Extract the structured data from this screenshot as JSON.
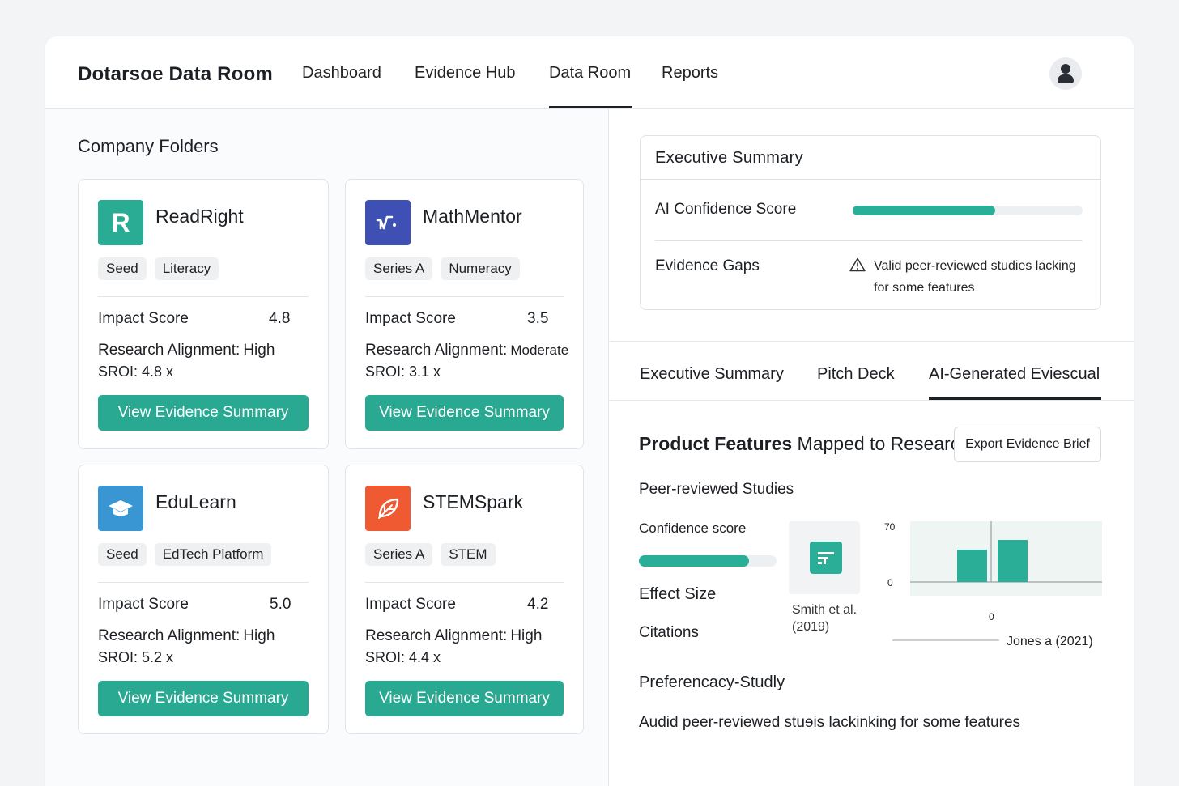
{
  "header": {
    "brand": "Dotarsoe Data Room",
    "nav": [
      "Dashboard",
      "Evidence Hub",
      "Data Room",
      "Reports"
    ],
    "active_nav": "Data Room"
  },
  "folders": {
    "title": "Company Folders",
    "cards": [
      {
        "name": "ReadRight",
        "logo": "R",
        "logo_color": "#2aab94",
        "tags": [
          "Seed",
          "Literacy"
        ],
        "impact_label": "Impact Score",
        "impact": "4.8",
        "alignment_label": "Research Alignment:",
        "alignment": "High",
        "sroi": "SROI: 4.8 x",
        "button": "View Evidence Summary"
      },
      {
        "name": "MathMentor",
        "logo": "math-icon",
        "logo_color": "#3f50b5",
        "tags": [
          "Series A",
          "Numeracy"
        ],
        "impact_label": "Impact Score",
        "impact": "3.5",
        "alignment_label": "Research Alignment:",
        "alignment": "Moderate",
        "sroi": "SROI: 3.1 x",
        "button": "View Evidence Summary"
      },
      {
        "name": "EduLearn",
        "logo": "graduation-cap-icon",
        "logo_color": "#3a96d2",
        "tags": [
          "Seed",
          "EdTech Platform"
        ],
        "impact_label": "Impact Score",
        "impact": "5.0",
        "alignment_label": "Research Alignment:",
        "alignment": "High",
        "sroi": "SROI: 5.2 x",
        "button": "View Evidence Summary"
      },
      {
        "name": "STEMSpark",
        "logo": "leaf-icon",
        "logo_color": "#ef5a32",
        "tags": [
          "Series A",
          "STEM"
        ],
        "impact_label": "Impact Score",
        "impact": "4.2",
        "alignment_label": "Research Alignment:",
        "alignment": "High",
        "sroi": "SROI: 4.4 x",
        "button": "View Evidence Summary"
      }
    ]
  },
  "executive": {
    "title": "Executive Summary",
    "ai_label": "AI Confidence Score",
    "ai_confidence": 0.62,
    "gaps_label": "Evidence Gaps",
    "gaps_text": "Valid peer-reviewed studies lacking for some features"
  },
  "tabs": [
    "Executive Summary",
    "Pitch Deck",
    "AI-Generated Eviescual"
  ],
  "active_tab": "AI-Generated Eviescual",
  "features": {
    "title_bold": "Product Features",
    "title_rest": " Mapped to Research",
    "export_button": "Export Evidence Brief",
    "peer_title": "Peer-reviewed Studies",
    "confidence_label": "Confidence score",
    "confidence_value": 0.8,
    "effect_size_label": "Effect Size",
    "citations_label": "Citations",
    "study_ref": "Smith et al. (2019)",
    "chart_x_label": "Jones a  (2021)",
    "pref_title": "Preferencacy-Studly",
    "audit_text": "Audid peer-reviewed stuɘis lackinking for some features"
  },
  "chart_data": {
    "type": "bar",
    "y_ticks": [
      "70",
      "0"
    ],
    "x_tick": "0",
    "ylim": [
      0,
      70
    ],
    "values": [
      40,
      52
    ],
    "xlabel": "Jones a  (2021)",
    "color": "#2aae97"
  }
}
